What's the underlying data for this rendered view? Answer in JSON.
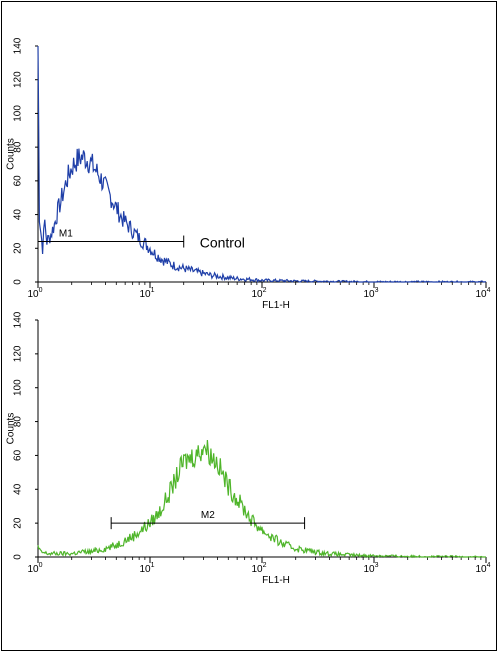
{
  "chart_data": [
    {
      "type": "line",
      "title": "",
      "xlabel": "FL1-H",
      "ylabel": "Counts",
      "x_scale": "log",
      "xlim": [
        1,
        10000
      ],
      "ylim": [
        0,
        140
      ],
      "x_ticks": [
        "10^0",
        "10^1",
        "10^2",
        "10^3",
        "10^4"
      ],
      "x_tick_base": "10",
      "x_tick_exponents": [
        "0",
        "1",
        "2",
        "3",
        "4"
      ],
      "y_ticks": [
        "0",
        "20",
        "40",
        "60",
        "80",
        "100",
        "120",
        "140"
      ],
      "series": [
        {
          "color": "#1f3fa8",
          "x": [
            1.0,
            1.03,
            1.06,
            1.1,
            1.15,
            1.2,
            1.3,
            1.4,
            1.5,
            1.6,
            1.8,
            2.0,
            2.2,
            2.4,
            2.6,
            2.8,
            3.0,
            3.3,
            3.6,
            4.0,
            4.5,
            5.0,
            5.6,
            6.3,
            7.1,
            8.0,
            9.0,
            10,
            11,
            12.5,
            14,
            16,
            18,
            20,
            23,
            26,
            30,
            35,
            40,
            50,
            60,
            80,
            100,
            150,
            200,
            300,
            500,
            1000,
            10000
          ],
          "y": [
            142,
            40,
            30,
            20,
            36,
            24,
            28,
            34,
            42,
            48,
            60,
            68,
            72,
            74,
            74,
            72,
            70,
            66,
            62,
            56,
            50,
            44,
            38,
            34,
            30,
            26,
            23,
            20,
            17,
            14,
            12,
            10,
            9,
            8,
            7,
            6,
            5,
            4,
            3.5,
            2.5,
            2,
            1.5,
            1,
            0.8,
            0.6,
            0.5,
            0.3,
            0.1,
            0
          ]
        }
      ],
      "gates": [
        {
          "label": "M1",
          "x_start": 1.0,
          "x_end": 20,
          "y": 24
        }
      ],
      "annotations": [
        "Control"
      ]
    },
    {
      "type": "line",
      "title": "",
      "xlabel": "FL1-H",
      "ylabel": "Counts",
      "x_scale": "log",
      "xlim": [
        1,
        10000
      ],
      "ylim": [
        0,
        140
      ],
      "x_ticks": [
        "10^0",
        "10^1",
        "10^2",
        "10^3",
        "10^4"
      ],
      "x_tick_base": "10",
      "x_tick_exponents": [
        "0",
        "1",
        "2",
        "3",
        "4"
      ],
      "y_ticks": [
        "0",
        "20",
        "40",
        "60",
        "80",
        "100",
        "120",
        "140"
      ],
      "series": [
        {
          "color": "#4fb52a",
          "x": [
            1.0,
            1.05,
            1.2,
            1.5,
            2.0,
            2.5,
            3.0,
            4.0,
            5.0,
            6.0,
            7.0,
            8.0,
            10,
            12,
            14,
            16,
            18,
            20,
            22,
            25,
            28,
            30,
            32,
            35,
            40,
            45,
            50,
            60,
            70,
            80,
            100,
            120,
            150,
            200,
            250,
            300,
            400,
            500,
            700,
            1000,
            2000,
            5000,
            10000
          ],
          "y": [
            6,
            3,
            2,
            2,
            2,
            3,
            3,
            5,
            7,
            10,
            12,
            15,
            20,
            26,
            34,
            42,
            50,
            56,
            58,
            60,
            62,
            66,
            64,
            60,
            56,
            48,
            42,
            34,
            28,
            22,
            16,
            12,
            8,
            5,
            4,
            3,
            2,
            1.5,
            1,
            0.8,
            0.4,
            0.2,
            0
          ]
        }
      ],
      "gates": [
        {
          "label": "M2",
          "x_start": 4.5,
          "x_end": 240,
          "y": 20
        }
      ],
      "annotations": []
    }
  ]
}
